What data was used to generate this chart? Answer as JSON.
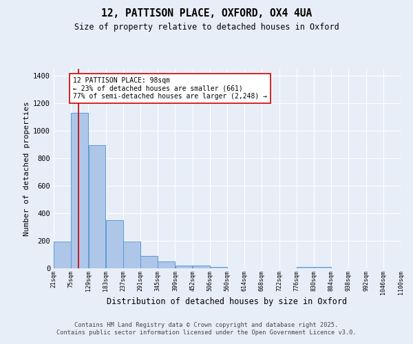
{
  "title1": "12, PATTISON PLACE, OXFORD, OX4 4UA",
  "title2": "Size of property relative to detached houses in Oxford",
  "xlabel": "Distribution of detached houses by size in Oxford",
  "ylabel": "Number of detached properties",
  "bin_labels": [
    "21sqm",
    "75sqm",
    "129sqm",
    "183sqm",
    "237sqm",
    "291sqm",
    "345sqm",
    "399sqm",
    "452sqm",
    "506sqm",
    "560sqm",
    "614sqm",
    "668sqm",
    "722sqm",
    "776sqm",
    "830sqm",
    "884sqm",
    "938sqm",
    "992sqm",
    "1046sqm",
    "1100sqm"
  ],
  "bar_heights": [
    193,
    1130,
    893,
    350,
    193,
    88,
    52,
    20,
    20,
    12,
    0,
    0,
    0,
    0,
    10,
    10,
    0,
    0,
    0,
    0,
    0
  ],
  "bar_color": "#aec6e8",
  "bar_edge_color": "#5b9bd5",
  "bg_color": "#e8eef7",
  "grid_color": "#ffffff",
  "annotation_line1": "12 PATTISON PLACE: 98sqm",
  "annotation_line2": "← 23% of detached houses are smaller (661)",
  "annotation_line3": "77% of semi-detached houses are larger (2,248) →",
  "annotation_box_color": "#ffffff",
  "annotation_box_edge": "#cc0000",
  "annotation_text_color": "#000000",
  "vline_color": "#cc0000",
  "vline_x": 98,
  "footer_text": "Contains HM Land Registry data © Crown copyright and database right 2025.\nContains public sector information licensed under the Open Government Licence v3.0.",
  "ylim": [
    0,
    1450
  ],
  "yticks": [
    0,
    200,
    400,
    600,
    800,
    1000,
    1200,
    1400
  ]
}
